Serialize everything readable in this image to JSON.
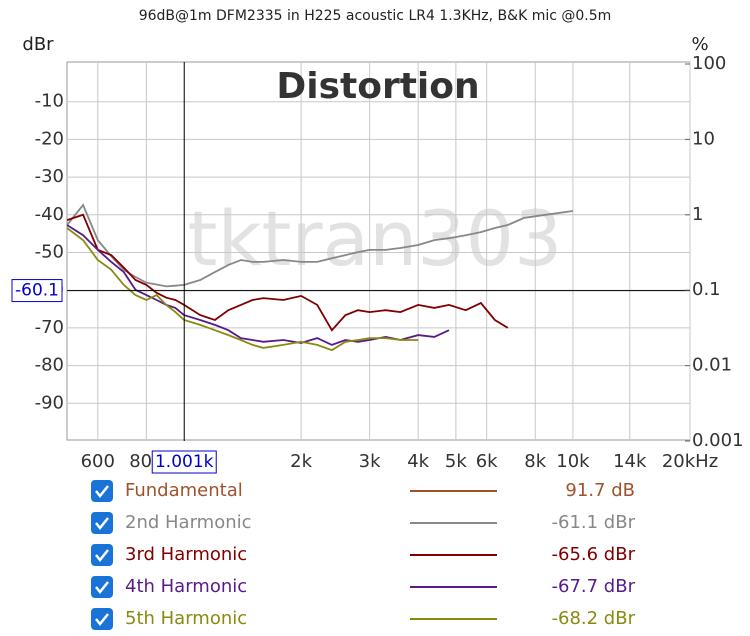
{
  "chart_data": {
    "type": "line",
    "header": "96dB@1m DFM2335 in H225 acoustic LR4 1.3KHz, B&K mic @0.5m",
    "title": "Distortion",
    "watermark": "tktran303",
    "ylabel": "dBr",
    "y2label": "%",
    "xlog": true,
    "y2log": true,
    "grid": true,
    "xlim": [
      500,
      20000
    ],
    "ylim": [
      -100,
      0
    ],
    "y2lim": [
      0.001,
      100
    ],
    "xticks": [
      600,
      800,
      {
        "value": 2000,
        "label": "2k"
      },
      {
        "value": 3000,
        "label": "3k"
      },
      {
        "value": 4000,
        "label": "4k"
      },
      {
        "value": 5000,
        "label": "5k"
      },
      {
        "value": 6000,
        "label": "6k"
      },
      {
        "value": 8000,
        "label": "8k"
      },
      {
        "value": 10000,
        "label": "10k"
      },
      {
        "value": 14000,
        "label": "14k"
      },
      {
        "value": 20000,
        "label": "20kHz"
      }
    ],
    "yticks": [
      -10,
      -20,
      -30,
      -40,
      -50,
      -60,
      -70,
      -80,
      -90
    ],
    "y2ticks": [
      100,
      10,
      1,
      0.1,
      0.01,
      0.001
    ],
    "cursor_x": {
      "value": 1001,
      "label": "1.001k"
    },
    "cursor_y": {
      "value": -60.1,
      "label": "-60.1"
    },
    "x": [
      500,
      550,
      600,
      650,
      700,
      750,
      800,
      850,
      900,
      950,
      1000,
      1100,
      1200,
      1300,
      1400,
      1500,
      1600,
      1800,
      2000,
      2200,
      2400,
      2600,
      2800,
      3000,
      3300,
      3600,
      4000,
      4400,
      4800,
      5300,
      5800,
      6300,
      6800,
      7500,
      8500,
      10000
    ],
    "series": [
      {
        "name": "Fundamental",
        "color": "#a0522d",
        "readout": "91.7 dB"
      },
      {
        "name": "2nd Harmonic",
        "color": "#888888",
        "readout": "-61.1 dBr",
        "values": [
          -42.7,
          -37.4,
          -46.7,
          -51,
          -54.6,
          -56.5,
          -58,
          -58.5,
          -59,
          -58.8,
          -58.6,
          -57.3,
          -55.2,
          -53.3,
          -52,
          -52.5,
          -52.5,
          -52,
          -52.5,
          -52.5,
          -51.5,
          -50.7,
          -49.9,
          -49.3,
          -49.3,
          -48.8,
          -48,
          -46.7,
          -46.2,
          -45.4,
          -44.6,
          -43.5,
          -42.7,
          -40.8,
          -40,
          -39
        ]
      },
      {
        "name": "3rd Harmonic",
        "color": "#800000",
        "readout": "-65.6 dBr",
        "values": [
          -41.4,
          -40,
          -49.3,
          -50.7,
          -54,
          -57.3,
          -58.6,
          -60.7,
          -62,
          -62.6,
          -63.9,
          -66.6,
          -67.9,
          -65.3,
          -63.9,
          -62.6,
          -62.1,
          -62.6,
          -61.5,
          -63.9,
          -70.6,
          -66.6,
          -65.3,
          -65.8,
          -65.3,
          -65.8,
          -63.9,
          -64.7,
          -63.9,
          -65.3,
          -63.4,
          -67.9,
          -70,
          null,
          null,
          null
        ]
      },
      {
        "name": "4th Harmonic",
        "color": "#5a1a8a",
        "readout": "-67.7 dBr",
        "values": [
          -42.7,
          -45.4,
          -49.3,
          -52.5,
          -55.2,
          -59.9,
          -61.3,
          -62.6,
          -63.9,
          -64.7,
          -66.6,
          -67.9,
          -69.2,
          -70.6,
          -72.7,
          -73.2,
          -73.7,
          -73.2,
          -74,
          -72.7,
          -74.5,
          -73.2,
          -73.7,
          -73.2,
          -72.4,
          -73.2,
          -71.9,
          -72.4,
          -70.6,
          null,
          null,
          null,
          null,
          null,
          null,
          null
        ]
      },
      {
        "name": "5th Harmonic",
        "color": "#8a8a10",
        "readout": "-68.2 dBr",
        "values": [
          -43.5,
          -46.7,
          -52,
          -54.6,
          -58.6,
          -61.3,
          -62.6,
          -61.3,
          -63.9,
          -65.8,
          -67.9,
          -69.2,
          -70.6,
          -71.9,
          -73.2,
          -74.5,
          -75.3,
          -74.5,
          -73.7,
          -74.5,
          -75.9,
          -73.7,
          -73.2,
          -72.7,
          -72.7,
          -73.2,
          -73.2,
          null,
          null,
          null,
          null,
          null,
          null,
          null,
          null,
          null
        ]
      }
    ]
  }
}
